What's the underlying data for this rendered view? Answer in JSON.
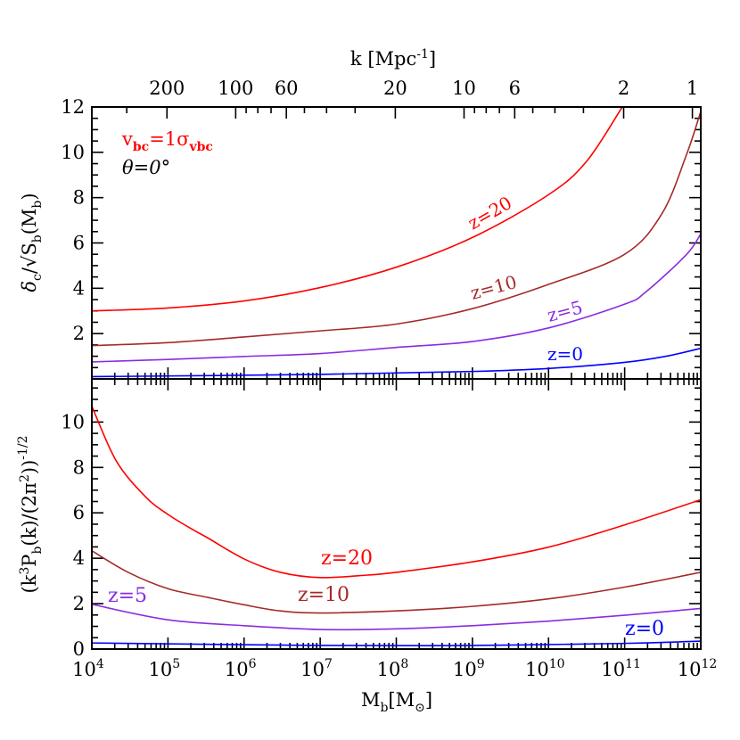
{
  "chart_data": [
    {
      "type": "line",
      "panel": "top",
      "ylabel": {
        "main": "δ",
        "sub1": "c",
        "mid": "/√S",
        "sub2": "b",
        "tail1": "(M",
        "sub3": "b",
        "tail2": ")"
      },
      "xscale": "log",
      "xlim": [
        10000.0,
        1000000000000.0
      ],
      "ylim": [
        0,
        12
      ],
      "yticks": [
        "2",
        "4",
        "6",
        "8",
        "10",
        "12"
      ],
      "top_axis": {
        "label": "k [Mpc",
        "label_sup": "-1",
        "label_close": "]",
        "ticks": [
          "200",
          "100",
          "60",
          "20",
          "10",
          "6",
          "2",
          "1"
        ],
        "minor_ticks": [
          300,
          90,
          80,
          70,
          50,
          40,
          30,
          9,
          8,
          7,
          5,
          4,
          3
        ]
      },
      "annotations": {
        "vbc": {
          "v": "v",
          "sub1": "bc",
          "eq": "=1σ",
          "sub2": "vbc",
          "color": "#ff0000"
        },
        "theta": "θ=0°"
      },
      "series": [
        {
          "name": "z=20",
          "color": "#ff0000",
          "label_rot": -30,
          "x": [
            10000.0,
            100000.0,
            1000000.0,
            10000000.0,
            100000000.0,
            1000000000.0,
            10000000000.0,
            31600000000.0,
            93000000000.0
          ],
          "y": [
            3.0,
            3.13,
            3.44,
            4.03,
            4.93,
            6.24,
            8.13,
            9.6,
            12.0
          ]
        },
        {
          "name": "z=10",
          "color": "#a52a2a",
          "label_rot": -15,
          "x": [
            10000.0,
            100000.0,
            1000000.0,
            10000000.0,
            100000000.0,
            1000000000.0,
            10000000000.0,
            100000000000.0,
            310000000000.0,
            650000000000.0,
            1000000000000.0
          ],
          "y": [
            1.47,
            1.6,
            1.85,
            2.12,
            2.42,
            3.1,
            4.17,
            5.5,
            7.3,
            9.9,
            11.8
          ]
        },
        {
          "name": "z=5",
          "color": "#8a2be2",
          "label_rot": -15,
          "x": [
            10000.0,
            100000.0,
            1000000.0,
            10000000.0,
            100000000.0,
            1000000000.0,
            10000000000.0,
            100000000000.0,
            190000000000.0,
            650000000000.0,
            1000000000000.0
          ],
          "y": [
            0.75,
            0.86,
            0.99,
            1.12,
            1.39,
            1.65,
            2.25,
            3.3,
            3.84,
            5.49,
            6.4
          ]
        },
        {
          "name": "z=0",
          "color": "#0000ff",
          "label_rot": 0,
          "x": [
            10000.0,
            10000000.0,
            1000000000.0,
            10000000000.0,
            100000000000.0,
            350000000000.0,
            1000000000000.0
          ],
          "y": [
            0.1,
            0.2,
            0.33,
            0.46,
            0.73,
            1.0,
            1.35
          ]
        }
      ]
    },
    {
      "type": "line",
      "panel": "bottom",
      "ylabel": {
        "pre": "(k",
        "sup1": "3",
        "p": "P",
        "sub1": "b",
        "mid": "(k)/(2π",
        "sup2": "2",
        "close": "))",
        "sup3": "-1/2"
      },
      "xlabel": {
        "m": "M",
        "sub1": "b",
        "rest": "[M",
        "sub2": "⊙",
        "close": "]"
      },
      "xscale": "log",
      "xlim": [
        10000.0,
        1000000000000.0
      ],
      "ylim": [
        0,
        11.9
      ],
      "xticks": [
        {
          "base": "10",
          "exp": "4"
        },
        {
          "base": "10",
          "exp": "5"
        },
        {
          "base": "10",
          "exp": "6"
        },
        {
          "base": "10",
          "exp": "7"
        },
        {
          "base": "10",
          "exp": "8"
        },
        {
          "base": "10",
          "exp": "9"
        },
        {
          "base": "10",
          "exp": "10"
        },
        {
          "base": "10",
          "exp": "11"
        },
        {
          "base": "10",
          "exp": "12"
        }
      ],
      "yticks": [
        "0",
        "2",
        "4",
        "6",
        "8",
        "10"
      ],
      "series": [
        {
          "name": "z=20",
          "color": "#ff0000",
          "x": [
            10000.0,
            21000.0,
            51000.0,
            100000.0,
            210000.0,
            340000.0,
            1000000.0,
            3000000.0,
            10000000.0,
            42000000.0,
            100000000.0,
            1000000000.0,
            10000000000.0,
            100000000000.0,
            1000000000000.0
          ],
          "y": [
            10.7,
            8.28,
            6.7,
            5.93,
            5.27,
            4.88,
            3.97,
            3.38,
            3.15,
            3.26,
            3.38,
            3.84,
            4.49,
            5.47,
            6.58
          ]
        },
        {
          "name": "z=10",
          "color": "#a52a2a",
          "x": [
            10000.0,
            30000.0,
            100000.0,
            340000.0,
            1000000.0,
            3000000.0,
            10000000.0,
            100000000.0,
            1000000000.0,
            10000000000.0,
            100000000000.0,
            1000000000000.0
          ],
          "y": [
            4.33,
            3.38,
            2.66,
            2.27,
            1.95,
            1.68,
            1.59,
            1.68,
            1.88,
            2.21,
            2.73,
            3.38
          ]
        },
        {
          "name": "z=5",
          "color": "#8a2be2",
          "x": [
            10000.0,
            100000.0,
            1000000.0,
            10000000.0,
            100000000.0,
            1000000000.0,
            10000000000.0,
            100000000000.0,
            1000000000000.0
          ],
          "y": [
            1.97,
            1.29,
            1.03,
            0.86,
            0.89,
            1.03,
            1.23,
            1.49,
            1.79
          ]
        },
        {
          "name": "z=0",
          "color": "#0000ff",
          "x": [
            10000.0,
            10000000.0,
            1000000000.0,
            100000000000.0,
            1000000000000.0
          ],
          "y": [
            0.27,
            0.16,
            0.16,
            0.25,
            0.35
          ]
        }
      ]
    }
  ]
}
